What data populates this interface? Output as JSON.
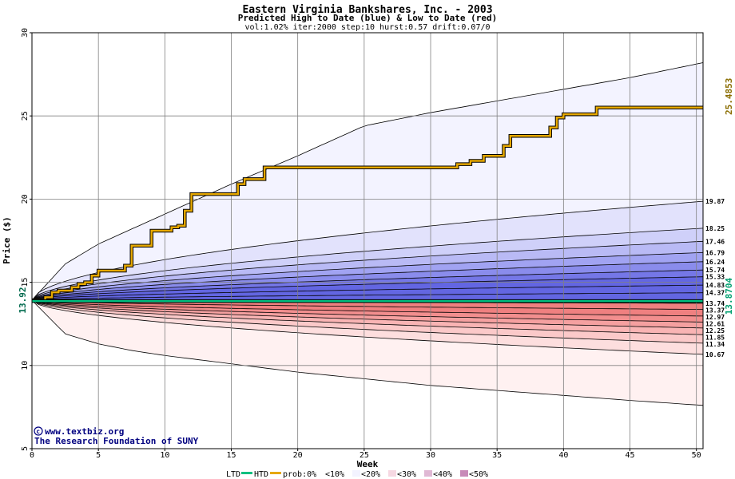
{
  "chart_data": {
    "type": "area",
    "title": "Eastern Virginia Bankshares, Inc. - 2003",
    "subtitle": "Predicted High to Date (blue) &  Low to Date (red)",
    "params": "vol:1.02% iter:2000 step:10 hurst:0.57 drift:0.07/0",
    "xlabel": "Week",
    "ylabel": "Price ($)",
    "xlim": [
      0,
      50.5
    ],
    "ylim": [
      5,
      30
    ],
    "xticks": [
      0,
      5,
      10,
      15,
      20,
      25,
      30,
      35,
      40,
      45,
      50
    ],
    "yticks": [
      5,
      10,
      15,
      20,
      25,
      30
    ],
    "grid": true,
    "start_price": 13.92,
    "start_label": "13.92",
    "envelope": {
      "x": [
        0,
        2.5,
        5,
        7.5,
        10,
        15,
        20,
        25,
        30,
        35,
        40,
        45,
        50.5
      ],
      "upper": [
        13.92,
        16.1,
        17.3,
        18.2,
        19.1,
        20.9,
        22.6,
        24.4,
        25.2,
        25.9,
        26.6,
        27.3,
        28.2
      ],
      "lower": [
        13.92,
        11.9,
        11.3,
        10.9,
        10.6,
        10.1,
        9.6,
        9.2,
        8.8,
        8.5,
        8.2,
        7.9,
        7.6
      ]
    },
    "band_end_values": [
      19.87,
      18.25,
      17.46,
      16.79,
      16.24,
      15.74,
      15.33,
      14.83,
      14.37,
      13.74,
      13.37,
      12.97,
      12.61,
      12.25,
      11.85,
      11.34,
      10.67
    ],
    "band_end_labels": [
      "19.87",
      "18.25",
      "17.46",
      "16.79",
      "16.24",
      "15.74",
      "15.33",
      "14.83",
      "14.37",
      "13.74",
      "13.37",
      "12.97",
      "12.61",
      "12.25",
      "11.85",
      "11.34",
      "10.67"
    ],
    "series": [
      {
        "name": "HTD",
        "color": "#e6a800",
        "x": [
          0,
          1,
          1.5,
          2,
          3,
          3.5,
          4,
          4.5,
          5,
          6,
          7,
          7.5,
          8,
          9,
          10,
          10.5,
          11,
          11.5,
          12,
          13,
          15,
          15.5,
          16,
          17,
          17.5,
          18,
          20,
          25,
          30,
          32,
          33,
          34,
          35,
          35.5,
          36,
          38,
          38.5,
          39,
          39.5,
          40,
          42,
          42.5,
          45,
          50.5
        ],
        "y": [
          13.92,
          14.1,
          14.4,
          14.5,
          14.7,
          14.9,
          15.0,
          15.4,
          15.7,
          15.7,
          16.0,
          17.2,
          17.2,
          18.1,
          18.1,
          18.3,
          18.4,
          19.3,
          20.3,
          20.3,
          20.3,
          20.9,
          21.2,
          21.2,
          21.9,
          21.9,
          21.9,
          21.9,
          21.9,
          22.1,
          22.3,
          22.6,
          22.6,
          23.2,
          23.8,
          23.8,
          23.8,
          24.3,
          24.9,
          25.1,
          25.1,
          25.5,
          25.5,
          25.5
        ]
      },
      {
        "name": "LTD",
        "color": "#00c080",
        "x": [
          0,
          50.5
        ],
        "y": [
          13.87,
          13.87
        ]
      }
    ],
    "end_labels": {
      "htd": "25.4853",
      "ltd": "13.8704"
    },
    "legend": {
      "placement": "bottom",
      "ltd": "LTD",
      "htd": "HTD",
      "prob_prefix": "prob:0%",
      "items": [
        "<10%",
        "<20%",
        "<30%",
        "<40%",
        "<50%"
      ]
    },
    "colors": {
      "outer_blue": "#f3f3ff",
      "outer_red": "#fff1f1",
      "blue_bands": [
        "#e2e2fc",
        "#cfd0f9",
        "#b9baf5",
        "#a1a3f2",
        "#8a8cec",
        "#7577e7",
        "#6366e2"
      ],
      "red_bands": [
        "#fddede",
        "#fbc9c9",
        "#f9b4b4",
        "#f5a0a0",
        "#f28e8e",
        "#ef8080"
      ],
      "grid": "#808080",
      "htd_line": "#e6a800",
      "ltd_line": "#00c080"
    }
  },
  "credits": {
    "website": "www.textbiz.org",
    "org": "The Research Foundation of SUNY"
  }
}
